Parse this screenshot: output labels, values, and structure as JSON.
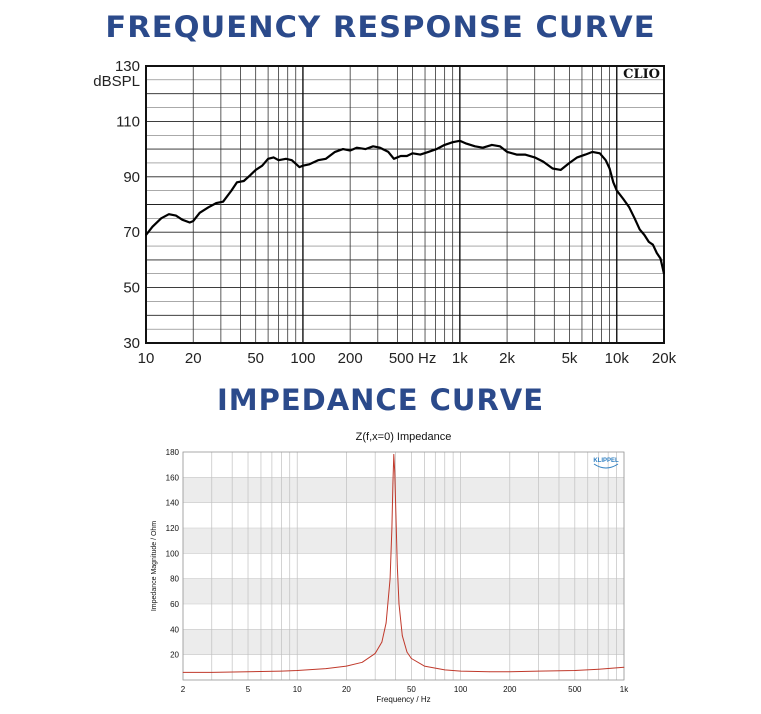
{
  "headings": {
    "frequency": "FREQUENCY RESPONSE CURVE",
    "impedance": "IMPEDANCE CURVE"
  },
  "chart_data": [
    {
      "type": "line",
      "title": "FREQUENCY RESPONSE CURVE",
      "brand": "CLIO",
      "ylabel": "dBSPL",
      "xscale": "log",
      "xlim": [
        10,
        20000
      ],
      "ylim": [
        30,
        130
      ],
      "yticks": [
        30,
        50,
        70,
        90,
        110,
        130
      ],
      "xtick_values": [
        10,
        20,
        50,
        100,
        200,
        500,
        1000,
        2000,
        5000,
        10000,
        20000
      ],
      "xtick_labels": [
        "10",
        "20",
        "50",
        "100",
        "200",
        "500 Hz",
        "1k",
        "2k",
        "5k",
        "10k",
        "20k"
      ],
      "grid": true,
      "line_color": "#000000",
      "series": [
        {
          "x": [
            10,
            11,
            12.5,
            14,
            15.5,
            17,
            19,
            20,
            22,
            25,
            28,
            31,
            35,
            38,
            42,
            46,
            50,
            55,
            60,
            65,
            70,
            78,
            85,
            95,
            100,
            110,
            125,
            140,
            160,
            180,
            200,
            220,
            250,
            280,
            310,
            350,
            380,
            420,
            460,
            500,
            560,
            630,
            710,
            800,
            900,
            1000,
            1100,
            1250,
            1400,
            1600,
            1800,
            2000,
            2300,
            2600,
            3000,
            3400,
            3900,
            4400,
            5000,
            5600,
            6300,
            7000,
            7800,
            8500,
            9000,
            9500,
            10000,
            11000,
            12000,
            13000,
            14000,
            15000,
            16000,
            17000,
            18000,
            19000,
            20000
          ],
          "y": [
            69,
            72,
            75,
            76.5,
            76,
            74.5,
            73.5,
            74,
            77,
            79,
            80.5,
            81,
            85,
            88,
            88.5,
            90.5,
            92.5,
            94,
            96.5,
            97,
            96,
            96.5,
            96,
            93.5,
            94,
            94.5,
            96,
            96.5,
            99,
            100,
            99.5,
            100.5,
            100,
            101,
            100.5,
            99,
            96.5,
            97.5,
            97.5,
            98.5,
            98,
            99,
            100,
            101.5,
            102.5,
            103,
            102,
            101,
            100.5,
            101.5,
            101,
            99,
            98,
            98,
            97,
            95.5,
            93,
            92.5,
            95,
            97,
            98,
            99,
            98.5,
            96,
            93,
            88,
            85,
            82,
            79,
            75,
            71,
            69,
            66.5,
            65.5,
            62.5,
            60.5,
            55
          ]
        }
      ]
    },
    {
      "type": "line",
      "title": "Z(f,x=0) Impedance",
      "brand": "KLIPPEL",
      "xlabel": "Frequency / Hz",
      "ylabel": "Impedance Magnitude / Ohm",
      "xscale": "log",
      "xlim": [
        2,
        1000
      ],
      "ylim": [
        0,
        180
      ],
      "yticks": [
        20,
        40,
        60,
        80,
        100,
        120,
        140,
        160,
        180
      ],
      "xtick_values": [
        2,
        5,
        10,
        20,
        50,
        100,
        200,
        500,
        1000
      ],
      "xtick_labels": [
        "2",
        "5",
        "10",
        "20",
        "50",
        "100",
        "200",
        "500",
        "1k"
      ],
      "grid": true,
      "line_color": "#c0392b",
      "series": [
        {
          "x": [
            2,
            3,
            5,
            8,
            10,
            15,
            20,
            25,
            30,
            33,
            35,
            37,
            38,
            38.5,
            39,
            39.5,
            40,
            41,
            42,
            44,
            47,
            50,
            60,
            80,
            100,
            150,
            200,
            300,
            500,
            700,
            1000
          ],
          "y": [
            6,
            6,
            6.5,
            7,
            7.5,
            9,
            11,
            14,
            21,
            30,
            45,
            80,
            120,
            155,
            178,
            165,
            140,
            90,
            60,
            35,
            22,
            17,
            11,
            8,
            7,
            6.5,
            6.5,
            7,
            7.5,
            8.5,
            10
          ]
        }
      ]
    }
  ]
}
